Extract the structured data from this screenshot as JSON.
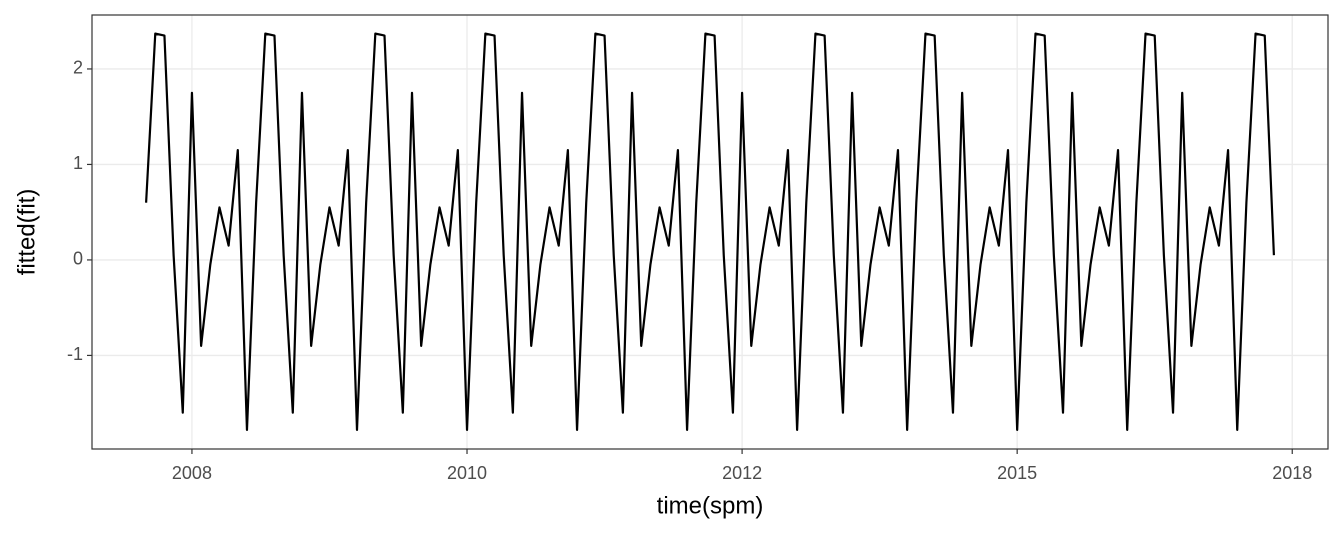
{
  "chart_data": {
    "type": "line",
    "x_label": "time(spm)",
    "y_label": "fitted(fit)",
    "x": [
      1,
      2,
      3,
      4,
      5,
      6,
      7,
      8,
      9,
      10,
      11,
      12,
      13,
      14,
      15,
      16,
      17,
      18,
      19,
      20,
      21,
      22,
      23,
      24,
      25,
      26,
      27,
      28,
      29,
      30,
      31,
      32,
      33,
      34,
      35,
      36,
      37,
      38,
      39,
      40,
      41,
      42,
      43,
      44,
      45,
      46,
      47,
      48,
      49,
      50,
      51,
      52,
      53,
      54,
      55,
      56,
      57,
      58,
      59,
      60,
      61,
      62,
      63,
      64,
      65,
      66,
      67,
      68,
      69,
      70,
      71,
      72,
      73,
      74,
      75,
      76,
      77,
      78,
      79,
      80,
      81,
      82,
      83,
      84,
      85,
      86,
      87,
      88,
      89,
      90,
      91,
      92,
      93,
      94,
      95,
      96,
      97,
      98,
      99,
      100,
      101,
      102,
      103,
      104,
      105,
      106,
      107,
      108,
      109,
      110,
      111,
      112,
      113,
      114,
      115,
      116,
      117,
      118,
      119,
      120,
      121,
      122,
      123,
      124
    ],
    "series": [
      {
        "color": "#000000",
        "values": [
          0.6,
          2.37,
          2.35,
          0.05,
          -1.6,
          1.75,
          -0.9,
          -0.05,
          0.55,
          0.15,
          1.15,
          -1.78,
          0.6,
          2.37,
          2.35,
          0.05,
          -1.6,
          1.75,
          -0.9,
          -0.05,
          0.55,
          0.15,
          1.15,
          -1.78,
          0.6,
          2.37,
          2.35,
          0.05,
          -1.6,
          1.75,
          -0.9,
          -0.05,
          0.55,
          0.15,
          1.15,
          -1.78,
          0.6,
          2.37,
          2.35,
          0.05,
          -1.6,
          1.75,
          -0.9,
          -0.05,
          0.55,
          0.15,
          1.15,
          -1.78,
          0.6,
          2.37,
          2.35,
          0.05,
          -1.6,
          1.75,
          -0.9,
          -0.05,
          0.55,
          0.15,
          1.15,
          -1.78,
          0.6,
          2.37,
          2.35,
          0.05,
          -1.6,
          1.75,
          -0.9,
          -0.05,
          0.55,
          0.15,
          1.15,
          -1.78,
          0.6,
          2.37,
          2.35,
          0.05,
          -1.6,
          1.75,
          -0.9,
          -0.05,
          0.55,
          0.15,
          1.15,
          -1.78,
          0.6,
          2.37,
          2.35,
          0.05,
          -1.6,
          1.75,
          -0.9,
          -0.05,
          0.55,
          0.15,
          1.15,
          -1.78,
          0.6,
          2.37,
          2.35,
          0.05,
          -1.6,
          1.75,
          -0.9,
          -0.05,
          0.55,
          0.15,
          1.15,
          -1.78,
          0.6,
          2.37,
          2.35,
          0.05,
          -1.6,
          1.75,
          -0.9,
          -0.05,
          0.55,
          0.15,
          1.15,
          -1.78,
          0.6,
          2.37,
          2.35,
          0.05
        ]
      }
    ],
    "xlim": [
      -4.9,
      129.9
    ],
    "xticks": [
      {
        "value": 6,
        "label": "2008"
      },
      {
        "value": 36,
        "label": "2010"
      },
      {
        "value": 66,
        "label": "2012"
      },
      {
        "value": 96,
        "label": "2015"
      },
      {
        "value": 126,
        "label": "2018"
      }
    ],
    "ylim": [
      -1.98,
      2.565
    ],
    "yticks": [
      -1,
      0,
      1,
      2
    ],
    "grid": true
  }
}
